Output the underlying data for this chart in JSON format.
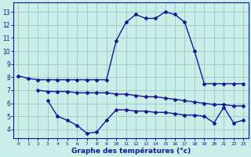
{
  "line1_x": [
    0,
    1,
    2,
    3,
    4,
    5,
    6,
    7,
    8,
    9,
    10,
    11,
    12,
    13,
    14,
    15,
    16,
    17,
    18,
    19,
    20,
    21,
    22,
    23
  ],
  "line1_y": [
    8.1,
    7.9,
    7.8,
    7.8,
    7.8,
    7.8,
    7.8,
    7.8,
    7.8,
    7.8,
    10.8,
    12.2,
    12.8,
    12.5,
    12.5,
    13.0,
    12.8,
    12.2,
    10.0,
    7.5,
    7.5,
    7.5,
    7.5,
    7.5
  ],
  "line2_x": [
    2,
    3,
    4,
    5,
    6,
    7,
    8,
    9,
    10,
    11,
    12,
    13,
    14,
    15,
    16,
    17,
    18,
    19,
    20,
    21,
    22,
    23
  ],
  "line2_y": [
    7.0,
    6.9,
    6.9,
    6.9,
    6.8,
    6.8,
    6.8,
    6.8,
    6.7,
    6.7,
    6.6,
    6.5,
    6.5,
    6.4,
    6.3,
    6.2,
    6.1,
    6.0,
    5.9,
    5.9,
    5.8,
    5.8
  ],
  "line3_x": [
    3,
    4,
    5,
    6,
    7,
    8,
    9,
    10,
    11,
    12,
    13,
    14,
    15,
    16,
    17,
    18,
    19,
    20,
    21,
    22,
    23
  ],
  "line3_y": [
    6.2,
    5.0,
    4.7,
    4.3,
    3.7,
    3.8,
    4.7,
    5.5,
    5.5,
    5.4,
    5.4,
    5.3,
    5.3,
    5.2,
    5.1,
    5.1,
    5.0,
    4.5,
    5.7,
    4.5,
    4.7
  ],
  "line_color": "#1414a0",
  "bg_color": "#cceee8",
  "grid_color": "#9dcfc8",
  "xlabel": "Graphe des températures (°c)",
  "ylabel_ticks": [
    4,
    5,
    6,
    7,
    8,
    9,
    10,
    11,
    12,
    13
  ],
  "xlim": [
    -0.5,
    23.5
  ],
  "ylim": [
    3.3,
    13.7
  ],
  "xtick_labels": [
    "0",
    "1",
    "2",
    "3",
    "4",
    "5",
    "6",
    "7",
    "8",
    "9",
    "10",
    "11",
    "12",
    "13",
    "14",
    "15",
    "16",
    "17",
    "18",
    "19",
    "20",
    "21",
    "22",
    "23"
  ],
  "marker": "D",
  "markersize": 2.0,
  "linewidth": 1.0
}
